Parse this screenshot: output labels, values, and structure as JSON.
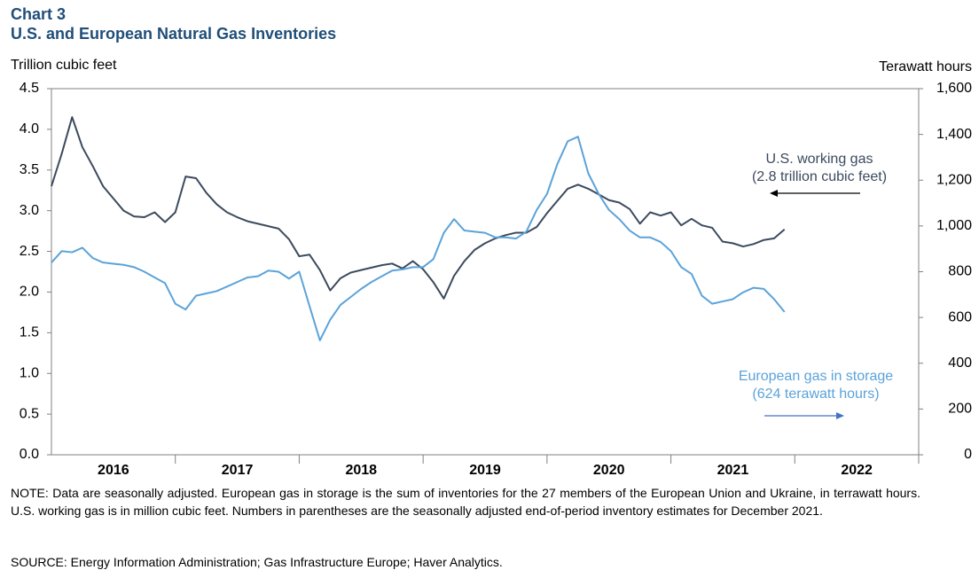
{
  "chart_data": {
    "type": "line",
    "title": "Chart 3",
    "subtitle": "U.S. and European Natural Gas Inventories",
    "y_label": "Trillion cubic feet",
    "y2_label": "Terawatt hours",
    "x": [
      2016,
      2016.083,
      2016.167,
      2016.25,
      2016.333,
      2016.417,
      2016.5,
      2016.583,
      2016.667,
      2016.75,
      2016.833,
      2016.917,
      2017,
      2017.083,
      2017.167,
      2017.25,
      2017.333,
      2017.417,
      2017.5,
      2017.583,
      2017.667,
      2017.75,
      2017.833,
      2017.917,
      2018,
      2018.083,
      2018.167,
      2018.25,
      2018.333,
      2018.417,
      2018.5,
      2018.583,
      2018.667,
      2018.75,
      2018.833,
      2018.917,
      2019,
      2019.083,
      2019.167,
      2019.25,
      2019.333,
      2019.417,
      2019.5,
      2019.583,
      2019.667,
      2019.75,
      2019.833,
      2019.917,
      2020,
      2020.083,
      2020.167,
      2020.25,
      2020.333,
      2020.417,
      2020.5,
      2020.583,
      2020.667,
      2020.75,
      2020.833,
      2020.917,
      2021,
      2021.083,
      2021.167,
      2021.25,
      2021.333,
      2021.417,
      2021.5,
      2021.583,
      2021.667,
      2021.75,
      2021.833,
      2021.917
    ],
    "xlim": [
      2016,
      2023
    ],
    "xticks": [
      {
        "value": 2016.5,
        "label": "2016"
      },
      {
        "value": 2017.5,
        "label": "2017"
      },
      {
        "value": 2018.5,
        "label": "2018"
      },
      {
        "value": 2019.5,
        "label": "2019"
      },
      {
        "value": 2020.5,
        "label": "2020"
      },
      {
        "value": 2021.5,
        "label": "2021"
      },
      {
        "value": 2022.5,
        "label": "2022"
      }
    ],
    "ylim": [
      0,
      4.5
    ],
    "yticks": [
      {
        "value": 0,
        "label": "0.0"
      },
      0.5,
      {
        "value": 1,
        "label": "1.0"
      },
      1.5,
      {
        "value": 2,
        "label": "2.0"
      },
      2.5,
      {
        "value": 3,
        "label": "3.0"
      },
      3.5,
      {
        "value": 4,
        "label": "4.0"
      },
      4.5
    ],
    "y2lim": [
      0,
      1600
    ],
    "y2ticks": [
      0,
      200,
      400,
      600,
      800,
      {
        "value": 1000,
        "label": "1,000"
      },
      {
        "value": 1200,
        "label": "1,200"
      },
      {
        "value": 1400,
        "label": "1,400"
      },
      {
        "value": 1600,
        "label": "1,600"
      }
    ],
    "series": [
      {
        "name": "U.S. working gas",
        "color": "#3b4a5e",
        "values": [
          3.3,
          3.7,
          4.15,
          3.78,
          3.55,
          3.3,
          3.15,
          3.0,
          2.93,
          2.92,
          2.98,
          2.86,
          2.98,
          3.42,
          3.4,
          3.22,
          3.08,
          2.98,
          2.92,
          2.87,
          2.84,
          2.81,
          2.78,
          2.65,
          2.44,
          2.46,
          2.27,
          2.02,
          2.17,
          2.24,
          2.27,
          2.3,
          2.33,
          2.35,
          2.29,
          2.38,
          2.28,
          2.12,
          1.92,
          2.2,
          2.38,
          2.52,
          2.6,
          2.66,
          2.7,
          2.73,
          2.73,
          2.8,
          2.97,
          3.12,
          3.27,
          3.32,
          3.27,
          3.2,
          3.13,
          3.1,
          3.02,
          2.84,
          2.98,
          2.94,
          2.98,
          2.82,
          2.9,
          2.82,
          2.79,
          2.62,
          2.6,
          2.56,
          2.59,
          2.64,
          2.66,
          2.77
        ]
      },
      {
        "name": "European gas in storage",
        "color": "#5ba3d9",
        "axis": "y2",
        "values": [
          840,
          890,
          885,
          905,
          860,
          840,
          835,
          830,
          820,
          800,
          775,
          750,
          660,
          635,
          695,
          705,
          715,
          735,
          755,
          775,
          780,
          805,
          800,
          770,
          800,
          650,
          500,
          590,
          655,
          690,
          725,
          755,
          780,
          805,
          810,
          820,
          820,
          855,
          970,
          1030,
          980,
          975,
          970,
          950,
          950,
          945,
          975,
          1070,
          1140,
          1270,
          1370,
          1390,
          1230,
          1140,
          1070,
          1030,
          980,
          950,
          950,
          930,
          890,
          820,
          790,
          695,
          660,
          670,
          680,
          710,
          730,
          725,
          680,
          624
        ]
      }
    ],
    "annotations": [
      "U.S. working gas",
      "(2.8 trillion cubic feet)",
      "European gas in storage",
      "(624 terawatt hours)"
    ],
    "note": "NOTE: Data are seasonally adjusted. European gas in storage is the sum of inventories for the 27 members of the European Union and Ukraine, in terrawatt hours. U.S. working gas is in million cubic feet. Numbers in parentheses are the seasonally adjusted end-of-period inventory estimates for December 2021.",
    "source": "SOURCE: Energy Information Administration; Gas Infrastructure Europe; Haver Analytics."
  }
}
